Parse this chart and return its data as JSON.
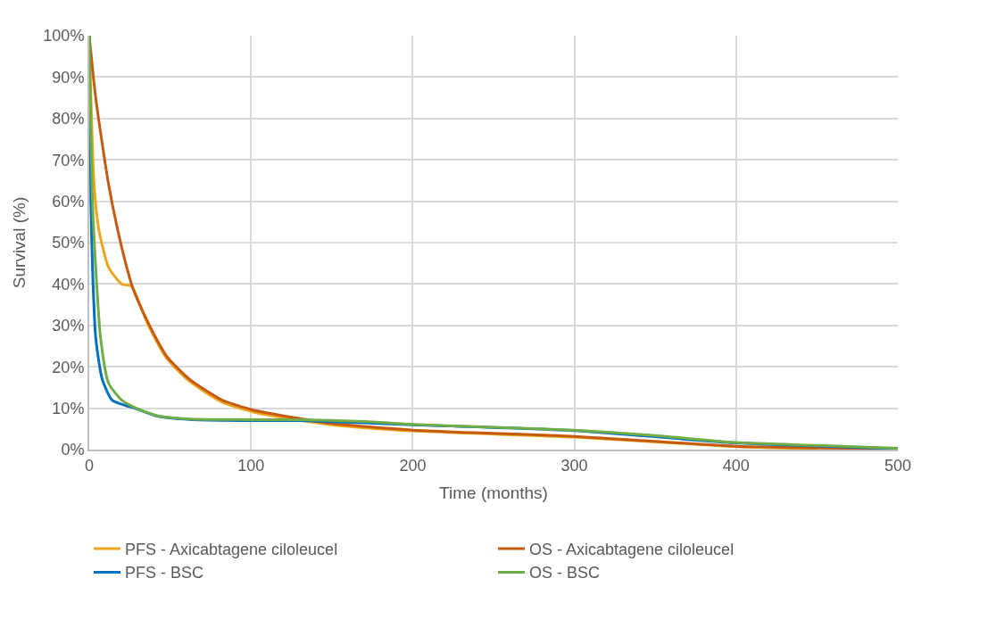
{
  "chart_data": {
    "type": "line",
    "xlabel": "Time (months)",
    "ylabel": "Survival (%)",
    "xlim": [
      0,
      500
    ],
    "xticks": [
      0,
      100,
      200,
      300,
      400,
      500
    ],
    "ylim": [
      0,
      100
    ],
    "yticks": [
      {
        "value": 0,
        "label": "0%"
      },
      {
        "value": 10,
        "label": "10%"
      },
      {
        "value": 20,
        "label": "20%"
      },
      {
        "value": 30,
        "label": "30%"
      },
      {
        "value": 40,
        "label": "40%"
      },
      {
        "value": 50,
        "label": "50%"
      },
      {
        "value": 60,
        "label": "60%"
      },
      {
        "value": 70,
        "label": "70%"
      },
      {
        "value": 80,
        "label": "80%"
      },
      {
        "value": 90,
        "label": "90%"
      },
      {
        "value": 100,
        "label": "100%"
      }
    ],
    "grid": true,
    "legend": "bottom",
    "marker": "none",
    "line_style": "solid",
    "series": [
      {
        "name": "PFS - Axicabtagene ciloleucel",
        "color": "#eda61a",
        "x": [
          0,
          3,
          6,
          12,
          20,
          26,
          36,
          48,
          62,
          82,
          102,
          132,
          150,
          200,
          300,
          400,
          450
        ],
        "values": [
          100,
          64,
          53,
          44,
          40,
          39.5,
          30.5,
          22,
          16.5,
          11.5,
          9,
          7,
          6,
          4.5,
          3,
          0.7,
          0.2
        ]
      },
      {
        "name": "OS - Axicabtagene ciloleucel",
        "color": "#c55a11",
        "x": [
          0,
          4,
          12,
          20,
          27,
          36,
          48,
          62,
          82,
          102,
          132,
          150,
          200,
          300,
          400,
          450,
          500
        ],
        "values": [
          100,
          85,
          64,
          49,
          39,
          31,
          22.5,
          17,
          12,
          9.5,
          7.4,
          6.3,
          4.7,
          3.2,
          0.8,
          0.4,
          0.2
        ]
      },
      {
        "name": "PFS - BSC",
        "color": "#0070c0",
        "x": [
          0,
          1,
          2,
          4,
          8,
          14,
          22,
          28,
          42,
          62,
          100,
          130,
          200,
          300,
          400,
          500
        ],
        "values": [
          100,
          60,
          44,
          27,
          17,
          12,
          10.7,
          10,
          8.1,
          7.3,
          7,
          7,
          6,
          4.6,
          1.6,
          0.2
        ]
      },
      {
        "name": "OS - BSC",
        "color": "#70ad47",
        "x": [
          0,
          2,
          4,
          7,
          12,
          20,
          28,
          42,
          62,
          130,
          170,
          200,
          250,
          300,
          350,
          400,
          450,
          500
        ],
        "values": [
          100,
          60,
          44,
          27,
          16,
          12,
          10.2,
          8.2,
          7.4,
          7.2,
          6.8,
          6.1,
          5.4,
          4.7,
          3.4,
          1.7,
          1,
          0.3
        ]
      }
    ]
  }
}
